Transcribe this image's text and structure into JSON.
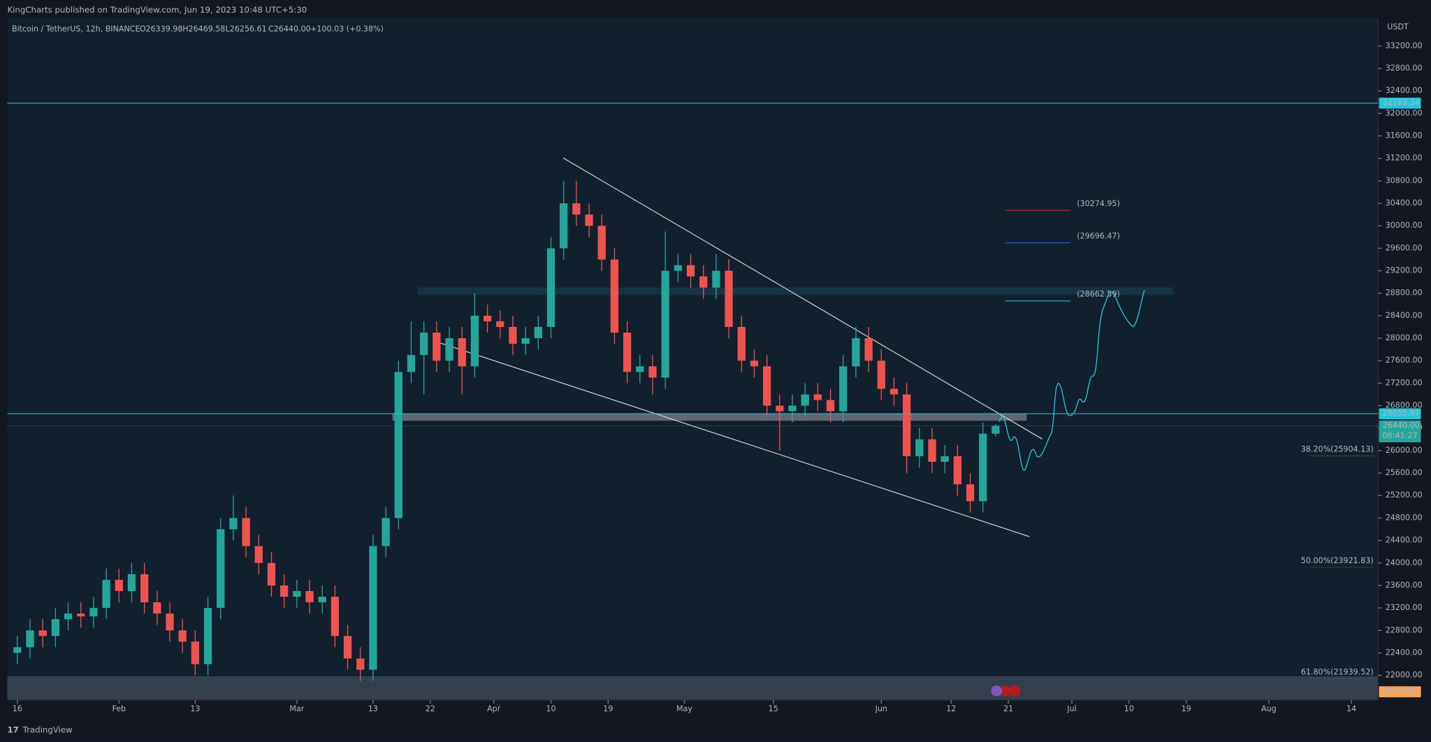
{
  "header": {
    "published": "KingCharts published on TradingView.com, Jun 19, 2023 10:48 UTC+5:30"
  },
  "footer": {
    "brand": "TradingView"
  },
  "chart_data": {
    "type": "candlestick",
    "title": "Bitcoin / TetherUS, 12h, BINANCE",
    "ohlc_text": {
      "open": "O26339.98",
      "high": "H26469.58",
      "low": "L26256.61",
      "close": "C26440.00",
      "change": "+100.03 (+0.38%)"
    },
    "y_unit": "USDT",
    "x": [
      0,
      2,
      4,
      6,
      8,
      10,
      12,
      14,
      16,
      18,
      20,
      22,
      24,
      26,
      28,
      30,
      32,
      34,
      36,
      38,
      40,
      42,
      44,
      46,
      48,
      50,
      52,
      54,
      56,
      58,
      60,
      62,
      64,
      66,
      68,
      70,
      72,
      74,
      76,
      78,
      80,
      82,
      84,
      86,
      88,
      90,
      92,
      94,
      96,
      98,
      100,
      102,
      104,
      106,
      108,
      110,
      112,
      114,
      116,
      118,
      120,
      122,
      124,
      126,
      128,
      130,
      132,
      134,
      136,
      138,
      140,
      142,
      144,
      146,
      148,
      150,
      152,
      154
    ],
    "open": [
      22400,
      22500,
      22800,
      22700,
      23000,
      23100,
      23050,
      23200,
      23700,
      23500,
      23800,
      23300,
      23100,
      22800,
      22600,
      22200,
      23200,
      24600,
      24800,
      24300,
      24000,
      23600,
      23400,
      23500,
      23300,
      23400,
      22700,
      22300,
      22100,
      24300,
      24800,
      27400,
      27700,
      28100,
      27600,
      28000,
      27500,
      28400,
      28300,
      28200,
      27900,
      28000,
      28200,
      29600,
      30400,
      30200,
      30000,
      29400,
      28100,
      27400,
      27500,
      27300,
      29200,
      29300,
      29100,
      28900,
      29200,
      28200,
      27600,
      27500,
      26800,
      26700,
      26800,
      27000,
      26900,
      26700,
      27500,
      28000,
      27600,
      27100,
      27000,
      25900,
      26200,
      25800,
      25900,
      25400,
      25100,
      26300
    ],
    "high": [
      22700,
      23000,
      23000,
      23200,
      23300,
      23300,
      23400,
      23900,
      23900,
      24000,
      24000,
      23500,
      23300,
      23000,
      22800,
      23400,
      24800,
      25200,
      25000,
      24500,
      24200,
      23800,
      23700,
      23700,
      23600,
      23600,
      22900,
      22500,
      24500,
      25000,
      27600,
      28300,
      28300,
      28300,
      28200,
      28200,
      28800,
      28600,
      28500,
      28400,
      28200,
      28400,
      29800,
      30800,
      30800,
      30400,
      30200,
      29600,
      28300,
      27700,
      27700,
      29900,
      29500,
      29500,
      29300,
      29500,
      29400,
      28400,
      27800,
      27700,
      27000,
      27000,
      27200,
      27200,
      27100,
      27700,
      28200,
      28200,
      27800,
      27300,
      27200,
      26400,
      26400,
      26100,
      26100,
      25600,
      26500,
      26470
    ],
    "low": [
      22200,
      22300,
      22500,
      22500,
      22800,
      22850,
      22850,
      23000,
      23300,
      23300,
      23100,
      22900,
      22600,
      22400,
      22000,
      22000,
      23000,
      24400,
      24100,
      23800,
      23400,
      23200,
      23200,
      23100,
      23100,
      22500,
      22100,
      21900,
      21900,
      24100,
      24600,
      27200,
      27000,
      27400,
      27400,
      27000,
      27300,
      28100,
      28000,
      27700,
      27700,
      27800,
      28000,
      29400,
      30000,
      29800,
      29200,
      27900,
      27200,
      27200,
      27000,
      27100,
      29000,
      28900,
      28700,
      28700,
      28000,
      27400,
      27300,
      26600,
      26000,
      26500,
      26600,
      26700,
      26500,
      26500,
      27300,
      27400,
      26900,
      26800,
      25600,
      25700,
      25600,
      25600,
      25200,
      24900,
      24900,
      26256
    ],
    "close": [
      22500,
      22800,
      22700,
      23000,
      23100,
      23050,
      23200,
      23700,
      23500,
      23800,
      23300,
      23100,
      22800,
      22600,
      22200,
      23200,
      24600,
      24800,
      24300,
      24000,
      23600,
      23400,
      23500,
      23300,
      23400,
      22700,
      22300,
      22100,
      24300,
      24800,
      27400,
      27700,
      28100,
      27600,
      28000,
      27500,
      28400,
      28300,
      28200,
      27900,
      28000,
      28200,
      29600,
      30400,
      30200,
      30000,
      29400,
      28100,
      27400,
      27500,
      27300,
      29200,
      29300,
      29100,
      28900,
      29200,
      28200,
      27600,
      27500,
      26800,
      26700,
      26800,
      27000,
      26900,
      26700,
      27500,
      28000,
      27600,
      27100,
      27000,
      25900,
      26200,
      25800,
      25900,
      25400,
      25100,
      26300,
      26440
    ],
    "up_color": "#26a69a",
    "down_color": "#ef5350",
    "xlim": [
      -1.58,
      214.2
    ],
    "xticks": [
      {
        "value": 0,
        "label": "16"
      },
      {
        "value": 16,
        "label": "Feb"
      },
      {
        "value": 28,
        "label": "13"
      },
      {
        "value": 44,
        "label": "Mar"
      },
      {
        "value": 56,
        "label": "13"
      },
      {
        "value": 65,
        "label": "22"
      },
      {
        "value": 75,
        "label": "Apr"
      },
      {
        "value": 84,
        "label": "10"
      },
      {
        "value": 93,
        "label": "19"
      },
      {
        "value": 105,
        "label": "May"
      },
      {
        "value": 119,
        "label": "15"
      },
      {
        "value": 136,
        "label": "Jun"
      },
      {
        "value": 147,
        "label": "12"
      },
      {
        "value": 156,
        "label": "21"
      },
      {
        "value": 166,
        "label": "Jul"
      },
      {
        "value": 175,
        "label": "10"
      },
      {
        "value": 184,
        "label": "19"
      },
      {
        "value": 197,
        "label": "Aug"
      },
      {
        "value": 210,
        "label": "14"
      }
    ],
    "ylim": [
      21562,
      33693
    ],
    "yticks": [
      {
        "value": 22000,
        "label": "22000.00"
      },
      {
        "value": 22400,
        "label": "22400.00"
      },
      {
        "value": 22800,
        "label": "22800.00"
      },
      {
        "value": 23200,
        "label": "23200.00"
      },
      {
        "value": 23600,
        "label": "23600.00"
      },
      {
        "value": 24000,
        "label": "24000.00"
      },
      {
        "value": 24400,
        "label": "24400.00"
      },
      {
        "value": 24800,
        "label": "24800.00"
      },
      {
        "value": 25200,
        "label": "25200.00"
      },
      {
        "value": 25600,
        "label": "25600.00"
      },
      {
        "value": 26000,
        "label": "26000.00"
      },
      {
        "value": 26400,
        "label": "26400.00"
      },
      {
        "value": 26800,
        "label": "26800.00"
      },
      {
        "value": 27200,
        "label": "27200.00"
      },
      {
        "value": 27600,
        "label": "27600.00"
      },
      {
        "value": 28000,
        "label": "28000.00"
      },
      {
        "value": 28400,
        "label": "28400.00"
      },
      {
        "value": 28800,
        "label": "28800.00"
      },
      {
        "value": 29200,
        "label": "29200.00"
      },
      {
        "value": 29600,
        "label": "29600.00"
      },
      {
        "value": 30000,
        "label": "30000.00"
      },
      {
        "value": 30400,
        "label": "30400.00"
      },
      {
        "value": 30800,
        "label": "30800.00"
      },
      {
        "value": 31200,
        "label": "31200.00"
      },
      {
        "value": 31600,
        "label": "31600.00"
      },
      {
        "value": 32000,
        "label": "32000.00"
      },
      {
        "value": 32400,
        "label": "32400.00"
      },
      {
        "value": 32800,
        "label": "32800.00"
      },
      {
        "value": 33200,
        "label": "33200.00"
      }
    ],
    "hlines": [
      {
        "value": 32183.34,
        "color": "#26c6da"
      },
      {
        "value": 26655.97,
        "color": "#26c6da"
      }
    ],
    "last_price": {
      "value": 26440,
      "label": "26440.00",
      "countdown": "06:41:27",
      "color": "#26a69a"
    },
    "volume_label": "18.922K",
    "fib_levels": [
      {
        "value": 25904.13,
        "label": "38.20%(25904.13)",
        "color": "#ffeb3b"
      },
      {
        "value": 23921.83,
        "label": "50.00%(23921.83)",
        "color": "#4caf50"
      },
      {
        "value": 21939.52,
        "label": "61.80%(21939.52)",
        "color": "#26c6da"
      }
    ],
    "targets": [
      {
        "value": 30274.95,
        "label": "(30274.95)",
        "color": "#d32f2f"
      },
      {
        "value": 29696.47,
        "label": "(29696.47)",
        "color": "#2962ff"
      },
      {
        "value": 28662.59,
        "label": "(28662.59)",
        "color": "#26c6da"
      }
    ]
  }
}
